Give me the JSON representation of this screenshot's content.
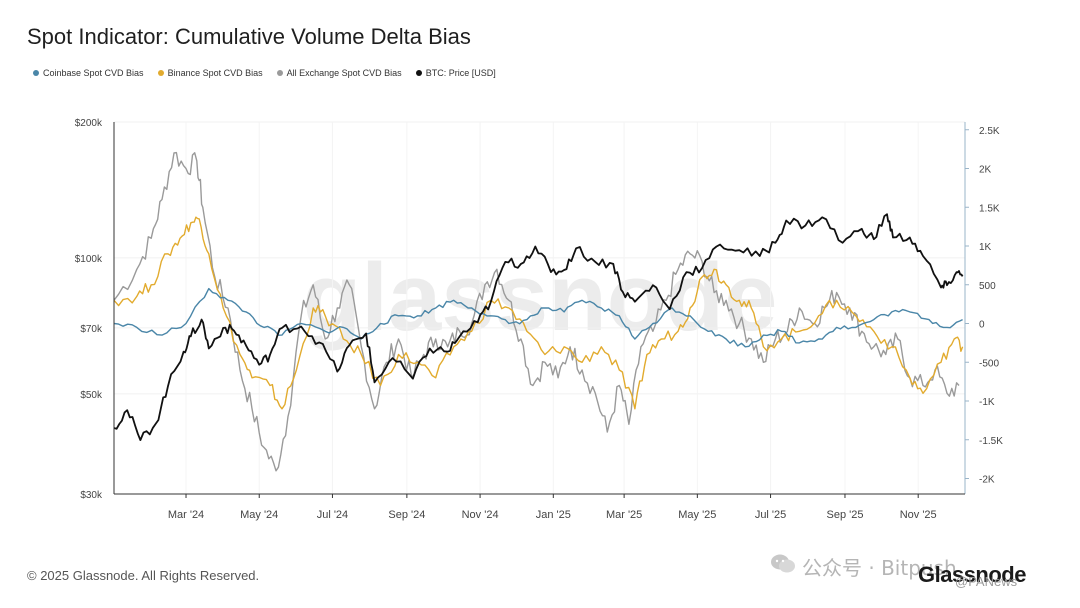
{
  "header": {
    "title": "Spot Indicator: Cumulative Volume Delta Bias"
  },
  "legend": [
    {
      "label": "Coinbase Spot CVD Bias",
      "color": "#4a86a8"
    },
    {
      "label": "Binance Spot CVD Bias",
      "color": "#e2ab2e"
    },
    {
      "label": "All Exchange Spot CVD Bias",
      "color": "#9a9a9a"
    },
    {
      "label": "BTC: Price [USD]",
      "color": "#111111"
    }
  ],
  "footer": {
    "copyright": "© 2025 Glassnode. All Rights Reserved."
  },
  "brand": {
    "logo_text": "Glassnode",
    "watermark": "glassnode"
  },
  "watermarks": {
    "channel": "公众号 · Bitpush",
    "bottom": "@PANews"
  },
  "chart_data": {
    "type": "line",
    "title": "Spot Indicator: Cumulative Volume Delta Bias",
    "x_range": [
      "2024-01-01",
      "2025-12-10"
    ],
    "x_ticks": [
      {
        "label": "Mar '24",
        "date": "2024-03-01"
      },
      {
        "label": "May '24",
        "date": "2024-05-01"
      },
      {
        "label": "Jul '24",
        "date": "2024-07-01"
      },
      {
        "label": "Sep '24",
        "date": "2024-09-01"
      },
      {
        "label": "Nov '24",
        "date": "2024-11-01"
      },
      {
        "label": "Jan '25",
        "date": "2025-01-01"
      },
      {
        "label": "Mar '25",
        "date": "2025-03-01"
      },
      {
        "label": "May '25",
        "date": "2025-05-01"
      },
      {
        "label": "Jul '25",
        "date": "2025-07-01"
      },
      {
        "label": "Sep '25",
        "date": "2025-09-01"
      },
      {
        "label": "Nov '25",
        "date": "2025-11-01"
      }
    ],
    "y_left": {
      "scale": "log",
      "range": [
        30000,
        200000
      ],
      "ticks": [
        {
          "label": "$200k",
          "value": 200000
        },
        {
          "label": "$100k",
          "value": 100000
        },
        {
          "label": "$70k",
          "value": 70000
        },
        {
          "label": "$50k",
          "value": 50000
        },
        {
          "label": "$30k",
          "value": 30000
        }
      ]
    },
    "y_right": {
      "scale": "linear",
      "range": [
        -2200,
        2600
      ],
      "ticks": [
        {
          "label": "2.5K",
          "value": 2500
        },
        {
          "label": "2K",
          "value": 2000
        },
        {
          "label": "1.5K",
          "value": 1500
        },
        {
          "label": "1K",
          "value": 1000
        },
        {
          "label": "500",
          "value": 500
        },
        {
          "label": "0",
          "value": 0
        },
        {
          "label": "-500",
          "value": -500
        },
        {
          "label": "-1K",
          "value": -1000
        },
        {
          "label": "-1.5K",
          "value": -1500
        },
        {
          "label": "-2K",
          "value": -2000
        }
      ]
    },
    "series": [
      {
        "name": "All Exchange Spot CVD Bias",
        "axis": "right",
        "color": "#9a9a9a",
        "points": [
          [
            "2024-01-01",
            300
          ],
          [
            "2024-01-20",
            700
          ],
          [
            "2024-02-01",
            1100
          ],
          [
            "2024-02-10",
            1600
          ],
          [
            "2024-02-20",
            2200
          ],
          [
            "2024-03-01",
            2000
          ],
          [
            "2024-03-10",
            2100
          ],
          [
            "2024-03-15",
            1500
          ],
          [
            "2024-03-25",
            600
          ],
          [
            "2024-04-05",
            200
          ],
          [
            "2024-04-15",
            -600
          ],
          [
            "2024-04-25",
            -1100
          ],
          [
            "2024-05-05",
            -1600
          ],
          [
            "2024-05-15",
            -1900
          ],
          [
            "2024-05-25",
            -1200
          ],
          [
            "2024-06-05",
            100
          ],
          [
            "2024-06-15",
            500
          ],
          [
            "2024-06-25",
            -200
          ],
          [
            "2024-07-05",
            200
          ],
          [
            "2024-07-15",
            500
          ],
          [
            "2024-07-25",
            -300
          ],
          [
            "2024-08-05",
            -1100
          ],
          [
            "2024-08-15",
            -500
          ],
          [
            "2024-08-25",
            -200
          ],
          [
            "2024-09-05",
            -700
          ],
          [
            "2024-09-15",
            -400
          ],
          [
            "2024-09-25",
            -200
          ],
          [
            "2024-10-05",
            -300
          ],
          [
            "2024-10-15",
            -100
          ],
          [
            "2024-10-25",
            0
          ],
          [
            "2024-11-05",
            500
          ],
          [
            "2024-11-15",
            700
          ],
          [
            "2024-11-25",
            300
          ],
          [
            "2024-12-05",
            -200
          ],
          [
            "2024-12-15",
            -800
          ],
          [
            "2024-12-25",
            -500
          ],
          [
            "2025-01-05",
            -700
          ],
          [
            "2025-01-15",
            -300
          ],
          [
            "2025-01-25",
            -600
          ],
          [
            "2025-02-05",
            -900
          ],
          [
            "2025-02-15",
            -1400
          ],
          [
            "2025-02-25",
            -800
          ],
          [
            "2025-03-05",
            -1300
          ],
          [
            "2025-03-15",
            -300
          ],
          [
            "2025-03-25",
            -100
          ],
          [
            "2025-04-05",
            300
          ],
          [
            "2025-04-15",
            700
          ],
          [
            "2025-04-25",
            900
          ],
          [
            "2025-05-05",
            800
          ],
          [
            "2025-05-15",
            400
          ],
          [
            "2025-05-25",
            300
          ],
          [
            "2025-06-05",
            0
          ],
          [
            "2025-06-15",
            -200
          ],
          [
            "2025-06-25",
            -500
          ],
          [
            "2025-07-05",
            -200
          ],
          [
            "2025-07-15",
            -100
          ],
          [
            "2025-07-25",
            200
          ],
          [
            "2025-08-05",
            0
          ],
          [
            "2025-08-15",
            200
          ],
          [
            "2025-08-25",
            400
          ],
          [
            "2025-09-05",
            200
          ],
          [
            "2025-09-15",
            -100
          ],
          [
            "2025-09-25",
            -300
          ],
          [
            "2025-10-05",
            -400
          ],
          [
            "2025-10-15",
            -200
          ],
          [
            "2025-10-25",
            -700
          ],
          [
            "2025-11-05",
            -800
          ],
          [
            "2025-11-15",
            -600
          ],
          [
            "2025-11-25",
            -900
          ],
          [
            "2025-12-05",
            -800
          ]
        ]
      },
      {
        "name": "Binance Spot CVD Bias",
        "axis": "right",
        "color": "#e2ab2e",
        "points": [
          [
            "2024-01-01",
            300
          ],
          [
            "2024-01-20",
            350
          ],
          [
            "2024-02-01",
            500
          ],
          [
            "2024-02-15",
            900
          ],
          [
            "2024-02-25",
            1100
          ],
          [
            "2024-03-05",
            1300
          ],
          [
            "2024-03-12",
            1350
          ],
          [
            "2024-03-20",
            900
          ],
          [
            "2024-04-01",
            200
          ],
          [
            "2024-04-15",
            -400
          ],
          [
            "2024-04-25",
            -700
          ],
          [
            "2024-05-10",
            -800
          ],
          [
            "2024-05-20",
            -1100
          ],
          [
            "2024-06-01",
            -600
          ],
          [
            "2024-06-15",
            200
          ],
          [
            "2024-06-25",
            100
          ],
          [
            "2024-07-10",
            -200
          ],
          [
            "2024-07-25",
            -400
          ],
          [
            "2024-08-10",
            -800
          ],
          [
            "2024-08-25",
            -400
          ],
          [
            "2024-09-10",
            -500
          ],
          [
            "2024-09-25",
            -700
          ],
          [
            "2024-10-10",
            -300
          ],
          [
            "2024-10-25",
            -100
          ],
          [
            "2024-11-10",
            300
          ],
          [
            "2024-11-25",
            200
          ],
          [
            "2024-12-10",
            -100
          ],
          [
            "2024-12-25",
            -400
          ],
          [
            "2025-01-10",
            -300
          ],
          [
            "2025-01-25",
            -500
          ],
          [
            "2025-02-10",
            -300
          ],
          [
            "2025-02-25",
            -600
          ],
          [
            "2025-03-10",
            -1100
          ],
          [
            "2025-03-20",
            -400
          ],
          [
            "2025-04-01",
            -200
          ],
          [
            "2025-04-15",
            -100
          ],
          [
            "2025-04-25",
            200
          ],
          [
            "2025-05-05",
            600
          ],
          [
            "2025-05-15",
            700
          ],
          [
            "2025-05-25",
            500
          ],
          [
            "2025-06-05",
            300
          ],
          [
            "2025-06-15",
            200
          ],
          [
            "2025-06-25",
            -300
          ],
          [
            "2025-07-10",
            -200
          ],
          [
            "2025-07-25",
            -100
          ],
          [
            "2025-08-10",
            100
          ],
          [
            "2025-08-25",
            300
          ],
          [
            "2025-09-10",
            100
          ],
          [
            "2025-09-25",
            -100
          ],
          [
            "2025-10-10",
            -300
          ],
          [
            "2025-10-25",
            -700
          ],
          [
            "2025-11-05",
            -900
          ],
          [
            "2025-11-20",
            -500
          ],
          [
            "2025-12-01",
            -200
          ],
          [
            "2025-12-08",
            -300
          ]
        ]
      },
      {
        "name": "Coinbase Spot CVD Bias",
        "axis": "right",
        "color": "#4a86a8",
        "points": [
          [
            "2024-01-01",
            0
          ],
          [
            "2024-01-20",
            -50
          ],
          [
            "2024-02-10",
            -150
          ],
          [
            "2024-03-01",
            0
          ],
          [
            "2024-03-20",
            450
          ],
          [
            "2024-04-05",
            300
          ],
          [
            "2024-04-20",
            150
          ],
          [
            "2024-05-05",
            -50
          ],
          [
            "2024-05-20",
            -150
          ],
          [
            "2024-06-05",
            0
          ],
          [
            "2024-06-25",
            -100
          ],
          [
            "2024-07-10",
            -50
          ],
          [
            "2024-07-25",
            -200
          ],
          [
            "2024-08-10",
            0
          ],
          [
            "2024-08-25",
            100
          ],
          [
            "2024-09-10",
            100
          ],
          [
            "2024-09-25",
            200
          ],
          [
            "2024-10-10",
            300
          ],
          [
            "2024-10-25",
            200
          ],
          [
            "2024-11-10",
            100
          ],
          [
            "2024-11-25",
            0
          ],
          [
            "2024-12-10",
            50
          ],
          [
            "2024-12-25",
            200
          ],
          [
            "2025-01-10",
            150
          ],
          [
            "2025-01-25",
            300
          ],
          [
            "2025-02-10",
            200
          ],
          [
            "2025-02-25",
            100
          ],
          [
            "2025-03-10",
            -200
          ],
          [
            "2025-03-25",
            0
          ],
          [
            "2025-04-10",
            200
          ],
          [
            "2025-04-25",
            100
          ],
          [
            "2025-05-10",
            -100
          ],
          [
            "2025-05-25",
            -200
          ],
          [
            "2025-06-10",
            -300
          ],
          [
            "2025-06-25",
            -150
          ],
          [
            "2025-07-10",
            -100
          ],
          [
            "2025-07-25",
            -250
          ],
          [
            "2025-08-10",
            -200
          ],
          [
            "2025-08-25",
            -50
          ],
          [
            "2025-09-10",
            -50
          ],
          [
            "2025-09-25",
            50
          ],
          [
            "2025-10-10",
            150
          ],
          [
            "2025-10-25",
            150
          ],
          [
            "2025-11-10",
            50
          ],
          [
            "2025-11-25",
            -50
          ],
          [
            "2025-12-08",
            50
          ]
        ]
      },
      {
        "name": "BTC: Price [USD]",
        "axis": "left",
        "color": "#111111",
        "points": [
          [
            "2024-01-01",
            42000
          ],
          [
            "2024-01-12",
            46000
          ],
          [
            "2024-01-23",
            39500
          ],
          [
            "2024-02-05",
            43000
          ],
          [
            "2024-02-15",
            52000
          ],
          [
            "2024-02-28",
            62000
          ],
          [
            "2024-03-05",
            67000
          ],
          [
            "2024-03-14",
            73000
          ],
          [
            "2024-03-20",
            63000
          ],
          [
            "2024-04-01",
            70000
          ],
          [
            "2024-04-10",
            69000
          ],
          [
            "2024-04-20",
            64000
          ],
          [
            "2024-05-01",
            58000
          ],
          [
            "2024-05-10",
            61000
          ],
          [
            "2024-05-20",
            70000
          ],
          [
            "2024-06-05",
            70500
          ],
          [
            "2024-06-20",
            65000
          ],
          [
            "2024-07-05",
            56000
          ],
          [
            "2024-07-15",
            64000
          ],
          [
            "2024-07-29",
            68000
          ],
          [
            "2024-08-05",
            53000
          ],
          [
            "2024-08-20",
            60000
          ],
          [
            "2024-09-06",
            54000
          ],
          [
            "2024-09-20",
            63000
          ],
          [
            "2024-10-05",
            62000
          ],
          [
            "2024-10-15",
            67000
          ],
          [
            "2024-10-30",
            72000
          ],
          [
            "2024-11-10",
            80000
          ],
          [
            "2024-11-22",
            98000
          ],
          [
            "2024-12-05",
            97000
          ],
          [
            "2024-12-17",
            106000
          ],
          [
            "2024-12-30",
            93000
          ],
          [
            "2025-01-10",
            94000
          ],
          [
            "2025-01-20",
            105000
          ],
          [
            "2025-02-05",
            98000
          ],
          [
            "2025-02-20",
            97000
          ],
          [
            "2025-02-28",
            84000
          ],
          [
            "2025-03-10",
            80000
          ],
          [
            "2025-03-25",
            87000
          ],
          [
            "2025-04-08",
            77000
          ],
          [
            "2025-04-22",
            93000
          ],
          [
            "2025-05-05",
            95000
          ],
          [
            "2025-05-20",
            107000
          ],
          [
            "2025-06-05",
            104000
          ],
          [
            "2025-06-22",
            101000
          ],
          [
            "2025-07-05",
            108000
          ],
          [
            "2025-07-14",
            121000
          ],
          [
            "2025-07-30",
            118000
          ],
          [
            "2025-08-13",
            123000
          ],
          [
            "2025-08-30",
            108000
          ],
          [
            "2025-09-15",
            116000
          ],
          [
            "2025-09-25",
            110000
          ],
          [
            "2025-10-06",
            125000
          ],
          [
            "2025-10-11",
            111000
          ],
          [
            "2025-10-25",
            111000
          ],
          [
            "2025-11-05",
            101000
          ],
          [
            "2025-11-20",
            86000
          ],
          [
            "2025-11-25",
            87000
          ],
          [
            "2025-12-03",
            93000
          ],
          [
            "2025-12-08",
            91000
          ]
        ]
      }
    ]
  }
}
